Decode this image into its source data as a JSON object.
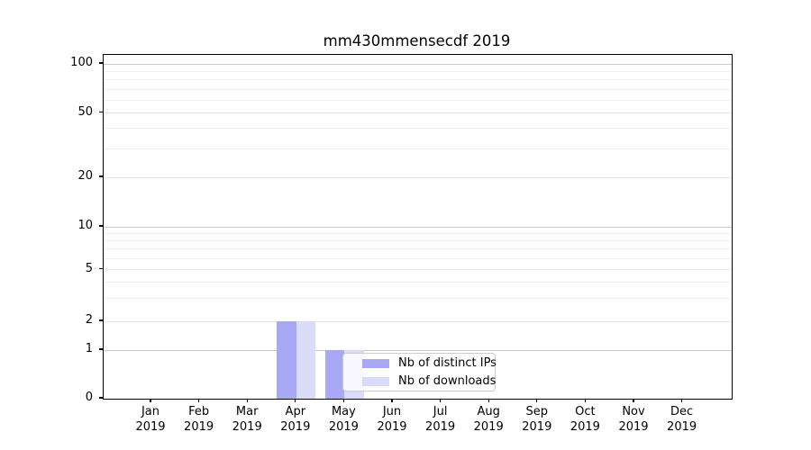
{
  "chart_data": {
    "type": "bar",
    "title": "mm430mmensecdf 2019",
    "categories": [
      "Jan",
      "Feb",
      "Mar",
      "Apr",
      "May",
      "Jun",
      "Jul",
      "Aug",
      "Sep",
      "Oct",
      "Nov",
      "Dec"
    ],
    "x_year": "2019",
    "series": [
      {
        "name": "Nb of distinct IPs",
        "color": "#a8a8f4",
        "values": [
          0,
          0,
          0,
          2,
          1,
          0,
          0,
          0,
          0,
          0,
          0,
          0
        ]
      },
      {
        "name": "Nb of downloads",
        "color": "#dadaf9",
        "values": [
          0,
          0,
          0,
          2,
          1,
          0,
          0,
          0,
          0,
          0,
          0,
          0
        ]
      }
    ],
    "yscale": "symlog",
    "ylim": [
      0,
      110
    ],
    "y_major_ticks": [
      0,
      1,
      2,
      5,
      10,
      20,
      50,
      100
    ],
    "y_minor_gridlines": [
      3,
      4,
      6,
      7,
      8,
      9,
      30,
      40,
      60,
      70,
      80,
      90
    ],
    "xlabel": "",
    "ylabel": "",
    "grid": "horizontal major+minor",
    "legend_position": "lower center"
  },
  "colors": {
    "background": "#ffffff",
    "spine": "#000000",
    "grid_power10": "#c9c9c9",
    "grid_labeled": "#e8e8e8",
    "grid_minor": "#f0f0f0",
    "legend_border": "#cccccc",
    "text": "#000000"
  }
}
